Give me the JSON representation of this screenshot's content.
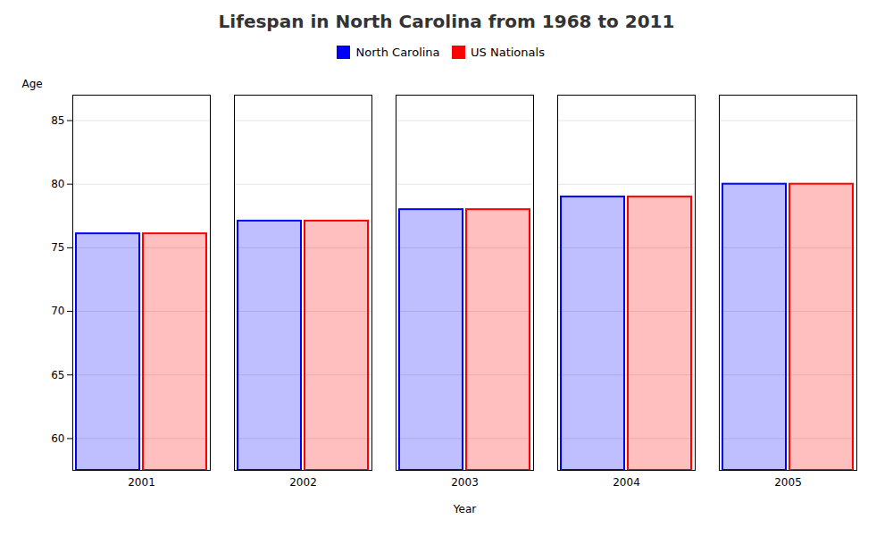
{
  "chart_data": {
    "type": "bar",
    "title": "Lifespan in North Carolina from 1968 to 2011",
    "xlabel": "Year",
    "ylabel": "Age",
    "categories": [
      "2001",
      "2002",
      "2003",
      "2004",
      "2005"
    ],
    "series": [
      {
        "name": "North Carolina",
        "color": "#0000ff",
        "values": [
          76.1,
          77.1,
          78.0,
          79.0,
          80.0
        ]
      },
      {
        "name": "US Nationals",
        "color": "#ff0000",
        "values": [
          76.1,
          77.1,
          78.0,
          79.0,
          80.0
        ]
      }
    ],
    "ylim": [
      57.5,
      87
    ],
    "yticks": [
      60,
      65,
      70,
      75,
      80,
      85
    ],
    "grid": true,
    "legend": "top"
  }
}
